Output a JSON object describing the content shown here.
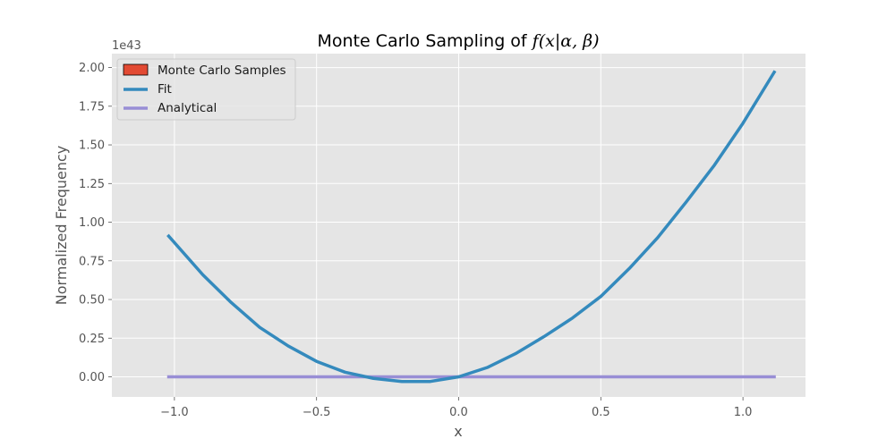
{
  "chart_data": {
    "type": "line",
    "title_prefix": "Monte Carlo Sampling of ",
    "title_math": "f(x|α, β)",
    "xlabel": "x",
    "ylabel": "Normalized Frequency",
    "y_offset_label": "1e43",
    "xlim": [
      -1.22,
      1.22
    ],
    "ylim": [
      -0.13,
      2.09
    ],
    "xticks": [
      {
        "value": -1.0,
        "label": "−1.0"
      },
      {
        "value": -0.5,
        "label": "−0.5"
      },
      {
        "value": 0.0,
        "label": "0.0"
      },
      {
        "value": 0.5,
        "label": "0.5"
      },
      {
        "value": 1.0,
        "label": "1.0"
      }
    ],
    "yticks": [
      {
        "value": 0.0,
        "label": "0.00"
      },
      {
        "value": 0.25,
        "label": "0.25"
      },
      {
        "value": 0.5,
        "label": "0.50"
      },
      {
        "value": 0.75,
        "label": "0.75"
      },
      {
        "value": 1.0,
        "label": "1.00"
      },
      {
        "value": 1.25,
        "label": "1.25"
      },
      {
        "value": 1.5,
        "label": "1.50"
      },
      {
        "value": 1.75,
        "label": "1.75"
      },
      {
        "value": 2.0,
        "label": "2.00"
      }
    ],
    "grid": true,
    "legend_position": "top-left",
    "series": [
      {
        "name": "Monte Carlo Samples",
        "kind": "histogram",
        "color": "#E24A33",
        "values": []
      },
      {
        "name": "Fit",
        "kind": "line",
        "color": "#348ABD",
        "x": [
          -1.02,
          -0.9,
          -0.8,
          -0.7,
          -0.6,
          -0.5,
          -0.4,
          -0.3,
          -0.2,
          -0.15,
          -0.1,
          0.0,
          0.1,
          0.2,
          0.3,
          0.4,
          0.5,
          0.6,
          0.7,
          0.8,
          0.9,
          1.0,
          1.11
        ],
        "y": [
          0.91,
          0.66,
          0.48,
          0.32,
          0.2,
          0.1,
          0.03,
          -0.01,
          -0.03,
          -0.03,
          -0.03,
          0.0,
          0.06,
          0.15,
          0.26,
          0.38,
          0.52,
          0.7,
          0.9,
          1.13,
          1.37,
          1.64,
          1.97
        ]
      },
      {
        "name": "Analytical",
        "kind": "line",
        "color": "#988ED5",
        "x": [
          -1.02,
          1.11
        ],
        "y": [
          0.0,
          0.0
        ]
      }
    ]
  },
  "colors": {
    "plot_background": "#E5E5E5",
    "grid": "#FFFFFF",
    "tick_text": "#555555"
  }
}
